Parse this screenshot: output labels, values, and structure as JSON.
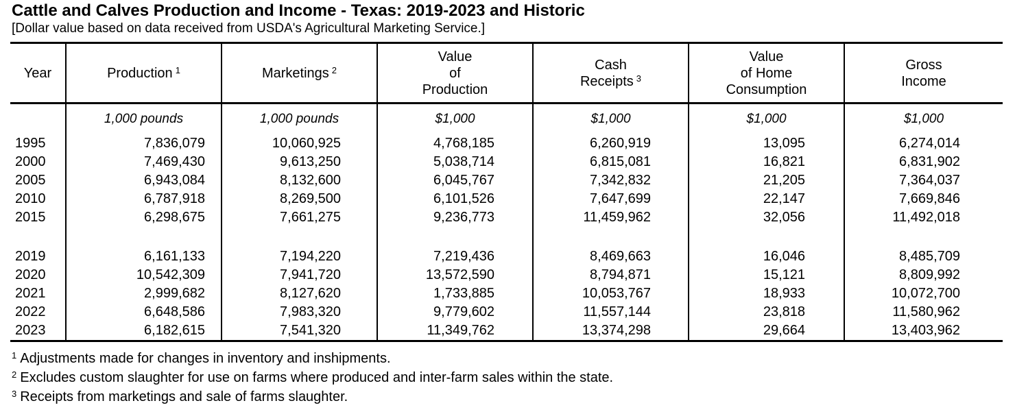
{
  "title": "Cattle and Calves Production and Income - Texas: 2019-2023 and Historic",
  "subtitle": "[Dollar value based on data received from USDA's Agricultural Marketing Service.]",
  "table": {
    "columns": [
      {
        "id": "year",
        "lines": [
          "Year"
        ],
        "sup": null,
        "sup_line": -1,
        "unit": ""
      },
      {
        "id": "production",
        "lines": [
          "Production"
        ],
        "sup": "1",
        "sup_line": 0,
        "unit": "1,000 pounds"
      },
      {
        "id": "marketings",
        "lines": [
          "Marketings"
        ],
        "sup": "2",
        "sup_line": 0,
        "unit": "1,000 pounds"
      },
      {
        "id": "value-of-production",
        "lines": [
          "Value",
          "of",
          "Production"
        ],
        "sup": null,
        "sup_line": -1,
        "unit": "$1,000"
      },
      {
        "id": "cash-receipts",
        "lines": [
          "Cash",
          "Receipts"
        ],
        "sup": "3",
        "sup_line": 1,
        "unit": "$1,000"
      },
      {
        "id": "value-of-home-consumption",
        "lines": [
          "Value",
          "of Home",
          "Consumption"
        ],
        "sup": null,
        "sup_line": -1,
        "unit": "$1,000"
      },
      {
        "id": "gross-income",
        "lines": [
          "Gross",
          "Income"
        ],
        "sup": null,
        "sup_line": -1,
        "unit": "$1,000"
      }
    ],
    "groups": [
      {
        "name": "historic",
        "rows": [
          [
            "1995",
            "7,836,079",
            "10,060,925",
            "4,768,185",
            "6,260,919",
            "13,095",
            "6,274,014"
          ],
          [
            "2000",
            "7,469,430",
            "9,613,250",
            "5,038,714",
            "6,815,081",
            "16,821",
            "6,831,902"
          ],
          [
            "2005",
            "6,943,084",
            "8,132,600",
            "6,045,767",
            "7,342,832",
            "21,205",
            "7,364,037"
          ],
          [
            "2010",
            "6,787,918",
            "8,269,500",
            "6,101,526",
            "7,647,699",
            "22,147",
            "7,669,846"
          ],
          [
            "2015",
            "6,298,675",
            "7,661,275",
            "9,236,773",
            "11,459,962",
            "32,056",
            "11,492,018"
          ]
        ]
      },
      {
        "name": "recent",
        "rows": [
          [
            "2019",
            "6,161,133",
            "7,194,220",
            "7,219,436",
            "8,469,663",
            "16,046",
            "8,485,709"
          ],
          [
            "2020",
            "10,542,309",
            "7,941,720",
            "13,572,590",
            "8,794,871",
            "15,121",
            "8,809,992"
          ],
          [
            "2021",
            "2,999,682",
            "8,127,620",
            "1,733,885",
            "10,053,767",
            "18,933",
            "10,072,700"
          ],
          [
            "2022",
            "6,648,586",
            "7,983,320",
            "9,779,602",
            "11,557,144",
            "23,818",
            "11,580,962"
          ],
          [
            "2023",
            "6,182,615",
            "7,541,320",
            "11,349,762",
            "13,374,298",
            "29,664",
            "13,403,962"
          ]
        ]
      }
    ]
  },
  "footnotes": [
    {
      "sup": "1",
      "text": "Adjustments made for changes in inventory and inshipments."
    },
    {
      "sup": "2",
      "text": "Excludes custom slaughter for use on farms where produced and inter-farm sales within the state."
    },
    {
      "sup": "3",
      "text": "Receipts from marketings and sale of farms slaughter."
    }
  ],
  "colors": {
    "text": "#000000",
    "background": "#ffffff",
    "rule": "#000000"
  }
}
